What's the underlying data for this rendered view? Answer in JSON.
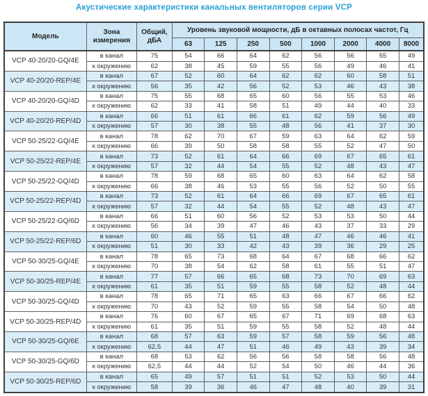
{
  "title": "Акустические характеристики канальных вентиляторов  серии VCP",
  "table": {
    "headers": {
      "model": "Модель",
      "zone": "Зона измерения",
      "total": "Общий, дБА",
      "span": "Уровень звуковой мощности, дБ в октавных полосах частот, Гц",
      "frequencies": [
        "63",
        "125",
        "250",
        "500",
        "1000",
        "2000",
        "4000",
        "8000"
      ]
    },
    "rows": [
      {
        "model": "VCP 40-20/20-GQ/4E",
        "shaded": false,
        "entries": [
          {
            "zone": "в канал",
            "total": "75",
            "bands": [
              "54",
              "66",
              "64",
              "62",
              "56",
              "56",
              "55",
              "49"
            ]
          },
          {
            "zone": "к окружению",
            "total": "62",
            "bands": [
              "38",
              "45",
              "59",
              "55",
              "56",
              "49",
              "46",
              "41"
            ]
          }
        ]
      },
      {
        "model": "VCP 40-20/20-REP/4E",
        "shaded": true,
        "entries": [
          {
            "zone": "в канал",
            "total": "67",
            "bands": [
              "52",
              "60",
              "64",
              "62",
              "62",
              "60",
              "58",
              "51"
            ]
          },
          {
            "zone": "к окружению",
            "total": "56",
            "bands": [
              "35",
              "42",
              "56",
              "52",
              "53",
              "46",
              "43",
              "38"
            ]
          }
        ]
      },
      {
        "model": "VCP 40-20/20-GQ/4D",
        "shaded": false,
        "entries": [
          {
            "zone": "в канал",
            "total": "75",
            "bands": [
              "55",
              "68",
              "65",
              "60",
              "56",
              "55",
              "53",
              "46"
            ]
          },
          {
            "zone": "к окружению",
            "total": "62",
            "bands": [
              "33",
              "41",
              "58",
              "51",
              "49",
              "44",
              "40",
              "33"
            ]
          }
        ]
      },
      {
        "model": "VCP 40-20/20-REP/4D",
        "shaded": true,
        "entries": [
          {
            "zone": "в канал",
            "total": "66",
            "bands": [
              "51",
              "61",
              "66",
              "61",
              "62",
              "59",
              "56",
              "49"
            ]
          },
          {
            "zone": "к окружению",
            "total": "57",
            "bands": [
              "30",
              "38",
              "55",
              "48",
              "56",
              "41",
              "37",
              "30"
            ]
          }
        ]
      },
      {
        "model": "VCP 50-25/22-GQ/4E",
        "shaded": false,
        "entries": [
          {
            "zone": "в канал",
            "total": "78",
            "bands": [
              "62",
              "70",
              "67",
              "59",
              "63",
              "64",
              "62",
              "59"
            ]
          },
          {
            "zone": "к окружению",
            "total": "66",
            "bands": [
              "39",
              "50",
              "58",
              "58",
              "55",
              "52",
              "47",
              "50"
            ]
          }
        ]
      },
      {
        "model": "VCP 50-25/22-REP/4E",
        "shaded": true,
        "entries": [
          {
            "zone": "в канал",
            "total": "73",
            "bands": [
              "52",
              "61",
              "64",
              "66",
              "69",
              "67",
              "65",
              "61"
            ]
          },
          {
            "zone": "к окружению",
            "total": "57",
            "bands": [
              "32",
              "44",
              "54",
              "55",
              "52",
              "48",
              "43",
              "47"
            ]
          }
        ]
      },
      {
        "model": "VCP 50-25/22-GQ/4D",
        "shaded": false,
        "entries": [
          {
            "zone": "в канал",
            "total": "78",
            "bands": [
              "59",
              "68",
              "65",
              "60",
              "63",
              "64",
              "62",
              "58"
            ]
          },
          {
            "zone": "к окружению",
            "total": "66",
            "bands": [
              "38",
              "46",
              "53",
              "55",
              "56",
              "52",
              "50",
              "55"
            ]
          }
        ]
      },
      {
        "model": "VCP 50-25/22-REP/4D",
        "shaded": true,
        "entries": [
          {
            "zone": "в канал",
            "total": "73",
            "bands": [
              "52",
              "61",
              "64",
              "66",
              "69",
              "67",
              "65",
              "61"
            ]
          },
          {
            "zone": "к окружению",
            "total": "57",
            "bands": [
              "32",
              "44",
              "54",
              "55",
              "52",
              "48",
              "43",
              "47"
            ]
          }
        ]
      },
      {
        "model": "VCP 50-25/22-GQ/6D",
        "shaded": false,
        "entries": [
          {
            "zone": "в канал",
            "total": "66",
            "bands": [
              "51",
              "60",
              "56",
              "52",
              "53",
              "53",
              "50",
              "44"
            ]
          },
          {
            "zone": "к окружению",
            "total": "56",
            "bands": [
              "34",
              "39",
              "47",
              "46",
              "43",
              "37",
              "33",
              "29"
            ]
          }
        ]
      },
      {
        "model": "VCP 50-25/22-REP/6D",
        "shaded": true,
        "entries": [
          {
            "zone": "в канал",
            "total": "60",
            "bands": [
              "46",
              "55",
              "51",
              "48",
              "47",
              "46",
              "46",
              "41"
            ]
          },
          {
            "zone": "к окружению",
            "total": "51",
            "bands": [
              "30",
              "33",
              "42",
              "43",
              "39",
              "36",
              "29",
              "25"
            ]
          }
        ]
      },
      {
        "model": "VCP 50-30/25-GQ/4E",
        "shaded": false,
        "entries": [
          {
            "zone": "в канал",
            "total": "78",
            "bands": [
              "65",
              "73",
              "68",
              "64",
              "67",
              "68",
              "66",
              "62"
            ]
          },
          {
            "zone": "к окружению",
            "total": "70",
            "bands": [
              "38",
              "54",
              "62",
              "58",
              "61",
              "55",
              "51",
              "47"
            ]
          }
        ]
      },
      {
        "model": "VCP 50-30/25-REP/4E",
        "shaded": true,
        "entries": [
          {
            "zone": "в канал",
            "total": "77",
            "bands": [
              "57",
              "66",
              "65",
              "68",
              "73",
              "70",
              "69",
              "63"
            ]
          },
          {
            "zone": "к окружению",
            "total": "61",
            "bands": [
              "35",
              "51",
              "59",
              "55",
              "58",
              "52",
              "48",
              "44"
            ]
          }
        ]
      },
      {
        "model": "VCP 50-30/25-GQ/4D",
        "shaded": false,
        "entries": [
          {
            "zone": "в канал",
            "total": "78",
            "bands": [
              "65",
              "71",
              "65",
              "63",
              "66",
              "67",
              "66",
              "62"
            ]
          },
          {
            "zone": "к окружению",
            "total": "70",
            "bands": [
              "43",
              "52",
              "59",
              "55",
              "58",
              "54",
              "50",
              "48"
            ]
          }
        ]
      },
      {
        "model": "VCP 50-30/25-REP/4D",
        "shaded": false,
        "entries": [
          {
            "zone": "в канал",
            "total": "76",
            "bands": [
              "60",
              "67",
              "65",
              "67",
              "71",
              "69",
              "68",
              "63"
            ]
          },
          {
            "zone": "к окружению",
            "total": "61",
            "bands": [
              "35",
              "51",
              "59",
              "55",
              "58",
              "52",
              "48",
              "44"
            ]
          }
        ]
      },
      {
        "model": "VCP 50-30/25-GQ/6E",
        "shaded": true,
        "entries": [
          {
            "zone": "в канал",
            "total": "68",
            "bands": [
              "57",
              "63",
              "59",
              "57",
              "58",
              "59",
              "56",
              "48"
            ]
          },
          {
            "zone": "к окружению",
            "total": "62,5",
            "bands": [
              "44",
              "47",
              "51",
              "46",
              "49",
              "43",
              "39",
              "34"
            ]
          }
        ]
      },
      {
        "model": "VCP 50-30/25-GQ/6D",
        "shaded": false,
        "entries": [
          {
            "zone": "в канал",
            "total": "68",
            "bands": [
              "53",
              "62",
              "56",
              "56",
              "58",
              "58",
              "56",
              "48"
            ]
          },
          {
            "zone": "к окружению",
            "total": "62,5",
            "bands": [
              "44",
              "44",
              "52",
              "54",
              "50",
              "46",
              "44",
              "36"
            ]
          }
        ]
      },
      {
        "model": "VCP 50-30/25-REP/6D",
        "shaded": true,
        "entries": [
          {
            "zone": "в канал",
            "total": "65",
            "bands": [
              "49",
              "57",
              "51",
              "51",
              "52",
              "53",
              "50",
              "44"
            ]
          },
          {
            "zone": "к окружению",
            "total": "58",
            "bands": [
              "39",
              "36",
              "46",
              "47",
              "48",
              "40",
              "39",
              "31"
            ]
          }
        ]
      }
    ]
  }
}
